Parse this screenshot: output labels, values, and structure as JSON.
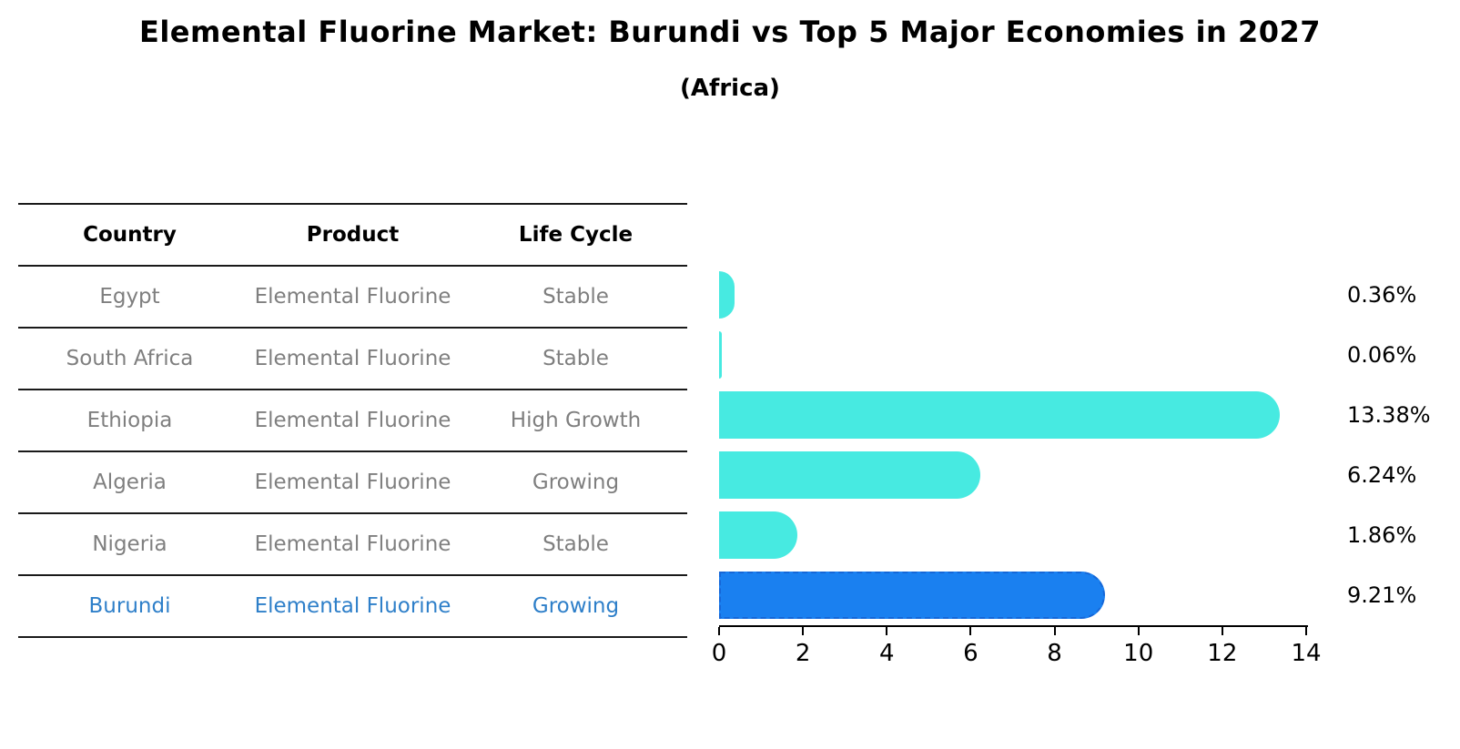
{
  "title": "Elemental Fluorine Market: Burundi vs Top 5 Major Economies in 2027",
  "subtitle": "(Africa)",
  "table": {
    "headers": [
      "Country",
      "Product",
      "Life Cycle"
    ],
    "rows": [
      {
        "country": "Egypt",
        "product": "Elemental Fluorine",
        "life_cycle": "Stable",
        "highlighted": false
      },
      {
        "country": "South Africa",
        "product": "Elemental Fluorine",
        "life_cycle": "Stable",
        "highlighted": false
      },
      {
        "country": "Ethiopia",
        "product": "Elemental Fluorine",
        "life_cycle": "High Growth",
        "highlighted": false
      },
      {
        "country": "Algeria",
        "product": "Elemental Fluorine",
        "life_cycle": "Growing",
        "highlighted": false
      },
      {
        "country": "Nigeria",
        "product": "Elemental Fluorine",
        "life_cycle": "Stable",
        "highlighted": false
      },
      {
        "country": "Burundi",
        "product": "Elemental Fluorine",
        "life_cycle": "Growing",
        "highlighted": true
      }
    ]
  },
  "chart_data": {
    "type": "bar",
    "orientation": "horizontal",
    "categories": [
      "Egypt",
      "South Africa",
      "Ethiopia",
      "Algeria",
      "Nigeria",
      "Burundi"
    ],
    "values": [
      0.36,
      0.06,
      13.38,
      6.24,
      1.86,
      9.21
    ],
    "value_labels": [
      "0.36%",
      "0.06%",
      "13.38%",
      "6.24%",
      "1.86%",
      "9.21%"
    ],
    "xlim": [
      0,
      14
    ],
    "x_ticks": [
      0,
      2,
      4,
      6,
      8,
      10,
      12,
      14
    ],
    "grid": false,
    "legend": "none",
    "bar_color": "#47EAE1",
    "highlight_index": 5,
    "highlight_color": "#1A80F0",
    "highlight_border_color": "#1567D8",
    "axis_color": "#000000",
    "label_color": "#000000"
  }
}
